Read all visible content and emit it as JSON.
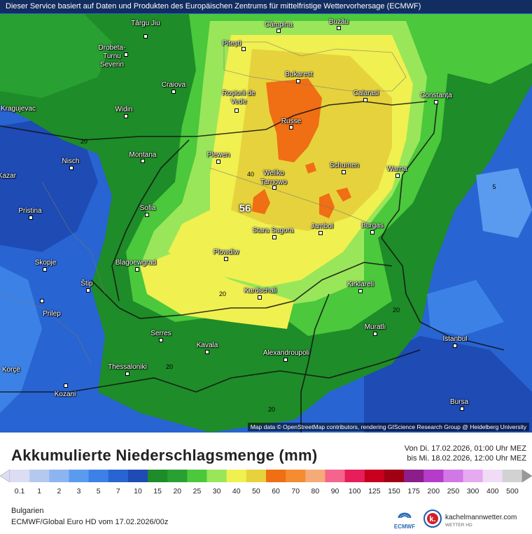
{
  "map": {
    "banner": "Dieser Service basiert auf Daten und Produkten des Europäischen Zentrums für mittelfristige Wettervorhersage (ECMWF)",
    "attribution": "Map data © OpenStreetMap contributors, rendering GIScience Research Group @ Heidelberg University",
    "max_value": "56",
    "cities": [
      {
        "name": "Târgu Jiu"
      },
      {
        "name": "Câmpina"
      },
      {
        "name": "Buzău"
      },
      {
        "name": "Drobeta-Turnu Severin"
      },
      {
        "name": "Pitești"
      },
      {
        "name": "Bukarest"
      },
      {
        "name": "Craiova"
      },
      {
        "name": "Roșiorii de Vede"
      },
      {
        "name": "Calarasi"
      },
      {
        "name": "Constanța"
      },
      {
        "name": "Kragujevac"
      },
      {
        "name": "Widin"
      },
      {
        "name": "Russe"
      },
      {
        "name": "Montana"
      },
      {
        "name": "Plewen"
      },
      {
        "name": "Nisch"
      },
      {
        "name": "Weliko Tarnowo"
      },
      {
        "name": "Schumen"
      },
      {
        "name": "Warna"
      },
      {
        "name": "Pristina"
      },
      {
        "name": "Sofia"
      },
      {
        "name": "Stara Sagora"
      },
      {
        "name": "Jambol"
      },
      {
        "name": "Burgas"
      },
      {
        "name": "Skopje"
      },
      {
        "name": "Blagoewgrad"
      },
      {
        "name": "Plowdiw"
      },
      {
        "name": "Štip"
      },
      {
        "name": "Prilep"
      },
      {
        "name": "Kardschali"
      },
      {
        "name": "Kirklareli"
      },
      {
        "name": "Serres"
      },
      {
        "name": "Muratlı"
      },
      {
        "name": "Kavala"
      },
      {
        "name": "Istanbul"
      },
      {
        "name": "Alexandroupoli"
      },
      {
        "name": "Korçë"
      },
      {
        "name": "Thessaloniki"
      },
      {
        "name": "Kozani"
      },
      {
        "name": "Bursa"
      },
      {
        "name": "Kazar"
      }
    ],
    "isolines": [
      "20",
      "40",
      "20",
      "20",
      "20",
      "20",
      "20",
      "5",
      "20",
      "20"
    ]
  },
  "legend": {
    "title": "Akkumulierte Niederschlagsmenge (mm)",
    "period_from": "Von Di. 17.02.2026, 01:00 Uhr MEZ",
    "period_to": "bis Mi. 18.02.2026, 12:00 Uhr MEZ",
    "values": [
      "0.1",
      "1",
      "2",
      "3",
      "5",
      "7",
      "10",
      "15",
      "20",
      "25",
      "30",
      "40",
      "50",
      "60",
      "70",
      "80",
      "90",
      "100",
      "125",
      "150",
      "175",
      "200",
      "250",
      "300",
      "400",
      "500"
    ],
    "colors": [
      "#dcdcf4",
      "#b4c8f0",
      "#8cb4f0",
      "#5a9bf0",
      "#3c82e6",
      "#2864d2",
      "#1e4bb4",
      "#1e8c28",
      "#28a032",
      "#4bc83c",
      "#9ae65a",
      "#f0f050",
      "#e6d23c",
      "#f06e14",
      "#f58c32",
      "#f5aa78",
      "#f5648c",
      "#e61e5a",
      "#c8001e",
      "#a00014",
      "#8c1e8c",
      "#b43cc8",
      "#d278e6",
      "#e6aaf0",
      "#f0dcf5",
      "#d2d2d2"
    ],
    "region": "Bulgarien",
    "model": "ECMWF/Global Euro HD vom  17.02.2026/00z",
    "ecmwf_logo_text": "ECMWF",
    "km_logo_text": "kachelmannwetter.com",
    "km_logo_sub": "WETTER HD"
  }
}
